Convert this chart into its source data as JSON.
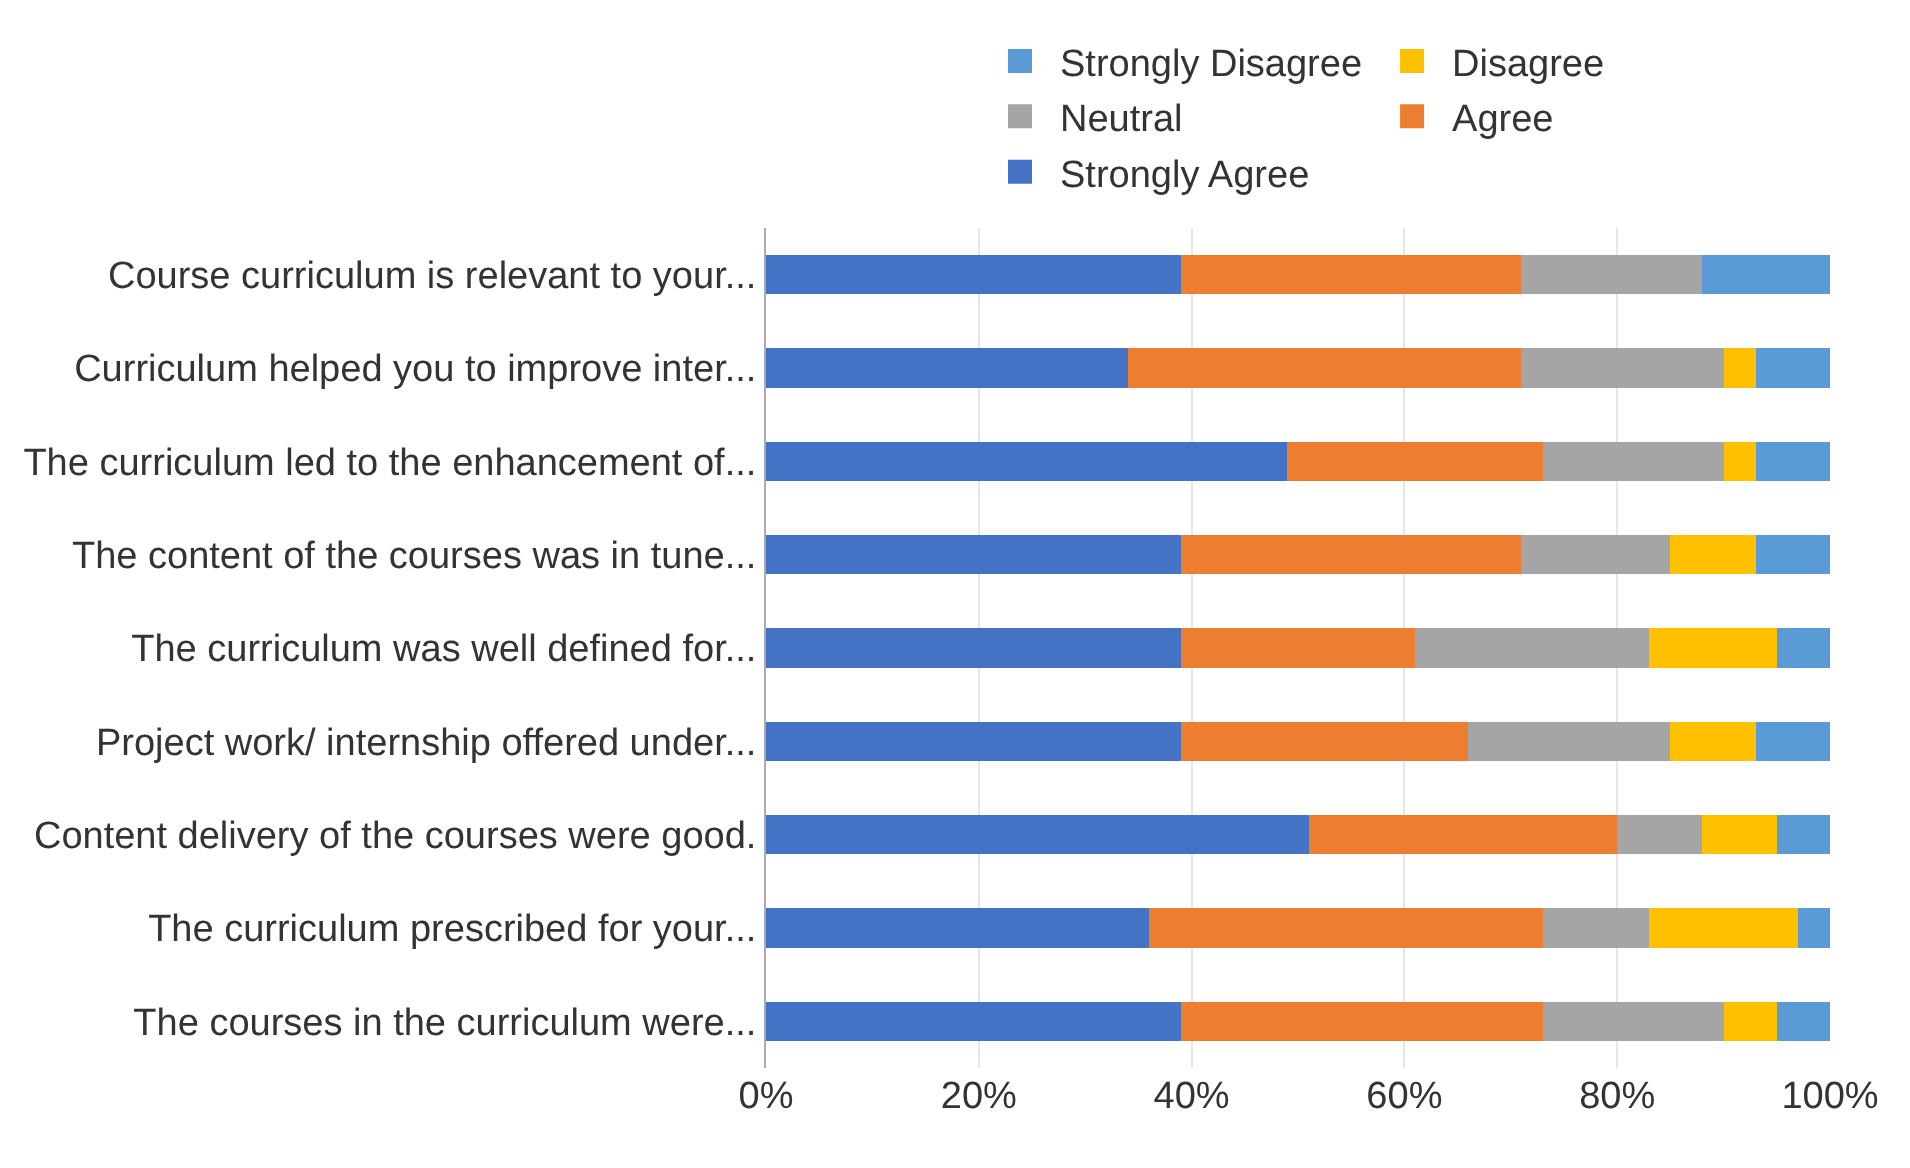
{
  "chart_data": {
    "type": "bar",
    "orientation": "horizontal",
    "stacked": true,
    "categories": [
      "Course curriculum is relevant to your...",
      "Curriculum helped you to improve inter...",
      "The curriculum led to the enhancement of...",
      "The content of the courses was in tune...",
      "The curriculum was well defined for...",
      "Project work/ internship offered under...",
      "Content delivery of the courses were good.",
      "The curriculum prescribed for your...",
      "The courses in the curriculum were..."
    ],
    "series": [
      {
        "name": "Strongly Agree",
        "color": "#4472c4",
        "values": [
          39,
          34,
          49,
          39,
          39,
          39,
          51,
          36,
          39
        ]
      },
      {
        "name": "Agree",
        "color": "#ed7d31",
        "values": [
          32,
          37,
          24,
          32,
          22,
          27,
          29,
          37,
          34
        ]
      },
      {
        "name": "Neutral",
        "color": "#a5a5a5",
        "values": [
          17,
          19,
          17,
          14,
          22,
          19,
          8,
          10,
          17
        ]
      },
      {
        "name": "Disagree",
        "color": "#ffc000",
        "values": [
          0,
          3,
          3,
          8,
          12,
          8,
          7,
          14,
          5
        ]
      },
      {
        "name": "Strongly Disagree",
        "color": "#5b9bd5",
        "values": [
          12,
          7,
          7,
          7,
          5,
          7,
          5,
          3,
          5
        ]
      }
    ],
    "xlim": [
      0,
      100
    ],
    "xticks": [
      {
        "value": 0,
        "label": "0%"
      },
      {
        "value": 20,
        "label": "20%"
      },
      {
        "value": 40,
        "label": "40%"
      },
      {
        "value": 60,
        "label": "60%"
      },
      {
        "value": 80,
        "label": "80%"
      },
      {
        "value": 100,
        "label": "100%"
      }
    ],
    "grid": "x",
    "legend": "top"
  }
}
